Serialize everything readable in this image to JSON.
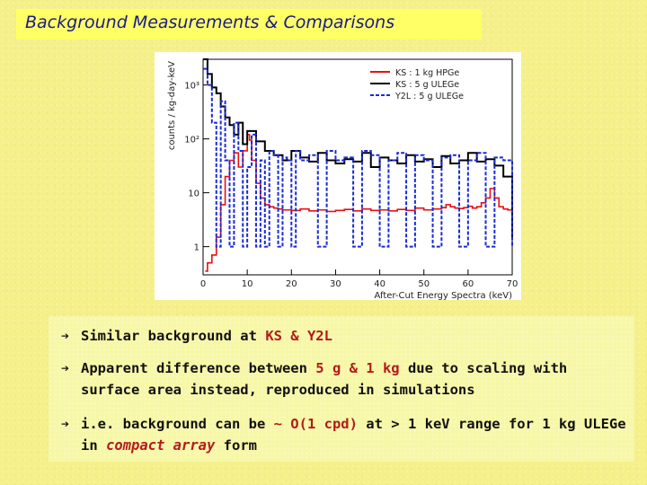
{
  "title": "Background Measurements & Comparisons",
  "chart_data": {
    "type": "line",
    "ylabel": "counts / kg-day-keV",
    "xlabel": "After-Cut Energy Spectra (keV)",
    "x_ticks": [
      "0",
      "10",
      "20",
      "30",
      "40",
      "50",
      "60",
      "70"
    ],
    "y_ticks": [
      "1",
      "10",
      "10²",
      "10³"
    ],
    "xlim": [
      0,
      70
    ],
    "ylim": [
      0.3,
      3000
    ],
    "yscale": "log",
    "grid": false,
    "legend": "top-right",
    "series": [
      {
        "name": "KS : 1 kg HPGe",
        "color": "#e81010",
        "style": "solid",
        "x": [
          0.5,
          1,
          2,
          3,
          4,
          5,
          6,
          7,
          8,
          9,
          10,
          10.5,
          11,
          12,
          13,
          14,
          15,
          16,
          17,
          18,
          20,
          22,
          24,
          26,
          28,
          30,
          32,
          34,
          36,
          38,
          40,
          42,
          44,
          46,
          48,
          50,
          52,
          54,
          55,
          56,
          57,
          58,
          59,
          60,
          61,
          62,
          63,
          64,
          65,
          66,
          67,
          68,
          69,
          70
        ],
        "y": [
          0.35,
          0.5,
          0.7,
          1.5,
          6,
          20,
          40,
          55,
          30,
          60,
          120,
          95,
          40,
          15,
          8,
          6,
          5.5,
          5.2,
          5,
          4.8,
          4.7,
          5,
          4.6,
          4.8,
          4.5,
          4.7,
          4.9,
          4.6,
          5,
          4.7,
          4.8,
          4.6,
          4.9,
          4.7,
          5.2,
          4.8,
          5,
          5.3,
          6,
          5.5,
          5.2,
          5.1,
          5.3,
          5.6,
          5.2,
          5.5,
          6.5,
          8,
          12,
          8,
          5.5,
          5,
          4.8,
          4.6
        ]
      },
      {
        "name": "KS : 5 g ULEGe",
        "color": "#000000",
        "style": "solid",
        "x": [
          0,
          1,
          2,
          3,
          4,
          5,
          6,
          7,
          8,
          9,
          10,
          12,
          14,
          16,
          18,
          20,
          22,
          24,
          26,
          28,
          30,
          32,
          34,
          36,
          38,
          40,
          42,
          44,
          46,
          48,
          50,
          52,
          54,
          56,
          58,
          60,
          62,
          64,
          66,
          68,
          70
        ],
        "y": [
          3000,
          1600,
          900,
          700,
          400,
          250,
          180,
          120,
          200,
          80,
          140,
          90,
          60,
          50,
          40,
          60,
          45,
          38,
          55,
          40,
          35,
          42,
          38,
          55,
          30,
          45,
          40,
          35,
          50,
          38,
          42,
          30,
          48,
          35,
          40,
          55,
          38,
          42,
          32,
          20,
          1.5
        ]
      },
      {
        "name": "Y2L : 5 g ULEGe",
        "color": "#1a2ad8",
        "style": "dashed",
        "x": [
          0,
          1,
          2,
          3,
          4,
          5,
          6,
          7,
          8,
          9,
          10,
          11,
          12,
          13,
          14,
          15,
          16,
          17,
          18,
          19,
          20,
          21,
          22,
          24,
          26,
          28,
          30,
          32,
          34,
          36,
          38,
          40,
          42,
          44,
          46,
          48,
          50,
          52,
          54,
          56,
          58,
          60,
          62,
          64,
          66,
          68,
          70
        ],
        "y": [
          2000,
          1000,
          200,
          1,
          500,
          40,
          1,
          200,
          60,
          1,
          30,
          120,
          1,
          40,
          1,
          60,
          50,
          1,
          45,
          40,
          1,
          60,
          40,
          50,
          1,
          60,
          40,
          45,
          1,
          60,
          50,
          1,
          40,
          55,
          1,
          50,
          40,
          1,
          45,
          50,
          1,
          40,
          55,
          1,
          45,
          40,
          1
        ]
      }
    ]
  },
  "bullets": [
    {
      "parts": [
        {
          "text": "Similar background at "
        },
        {
          "text": "KS & Y2L",
          "style": "red"
        }
      ]
    },
    {
      "parts": [
        {
          "text": "Apparent difference  between "
        },
        {
          "text": "5 g & 1 kg",
          "style": "red"
        },
        {
          "text": "  due to scaling with surface area instead, reproduced in simulations"
        }
      ]
    },
    {
      "parts": [
        {
          "text": "i.e. background can be "
        },
        {
          "text": "~ O(1 cpd)",
          "style": "red"
        },
        {
          "text": " at > 1 keV range for 1 kg ULEGe in "
        },
        {
          "text": "compact array",
          "style": "redi"
        },
        {
          "text": " form"
        }
      ]
    }
  ]
}
